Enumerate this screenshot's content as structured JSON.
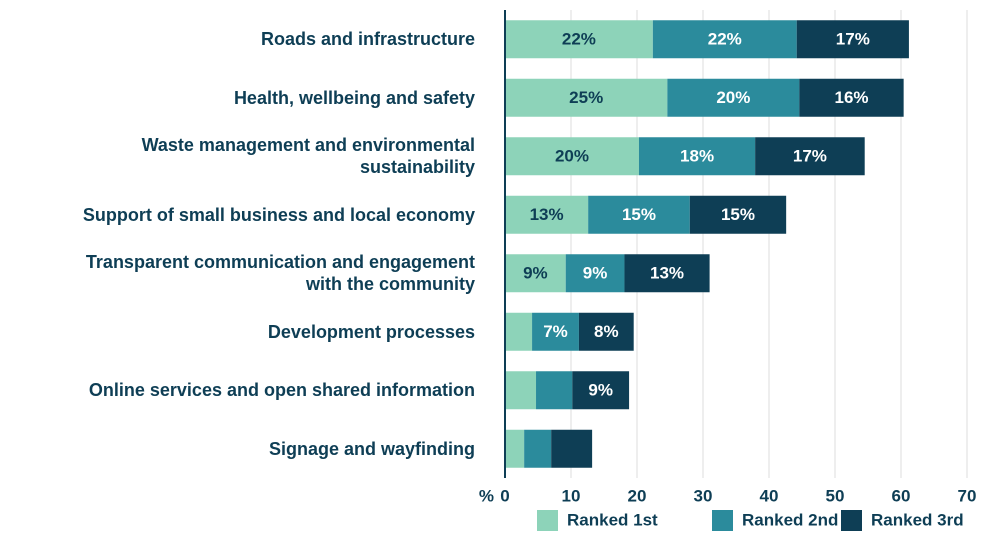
{
  "chart_data": {
    "type": "stacked-barh",
    "categories": [
      "Roads and infrastructure",
      "Health, wellbeing and safety",
      "Waste management and environmental\nsustainability",
      "Support of small business and local economy",
      "Transparent communication and engagement\nwith the community",
      "Development processes",
      "Online services and open shared information",
      "Signage and wayfinding"
    ],
    "series": [
      {
        "name": "Ranked 1st",
        "color": "#8dd3b9",
        "values": [
          22.4,
          24.6,
          20.3,
          12.6,
          9.2,
          4.1,
          4.7,
          2.9
        ],
        "value_labels": [
          "22%",
          "25%",
          "20%",
          "13%",
          "9%",
          null,
          null,
          null
        ]
      },
      {
        "name": "Ranked 2nd",
        "color": "#2b8b9c",
        "values": [
          21.8,
          20.0,
          17.6,
          15.4,
          8.9,
          7.1,
          5.5,
          4.1
        ],
        "value_labels": [
          "22%",
          "20%",
          "18%",
          "15%",
          "9%",
          "7%",
          null,
          null
        ]
      },
      {
        "name": "Ranked 3rd",
        "color": "#0e3e55",
        "values": [
          17.0,
          15.8,
          16.6,
          14.6,
          12.9,
          8.3,
          8.6,
          6.2
        ],
        "value_labels": [
          "17%",
          "16%",
          "17%",
          "15%",
          "13%",
          "8%",
          "9%",
          null
        ]
      }
    ],
    "xlabel": "%",
    "xlim": [
      0,
      70
    ],
    "xticks": [
      0,
      10,
      20,
      30,
      40,
      50,
      60,
      70
    ],
    "grid": true
  }
}
